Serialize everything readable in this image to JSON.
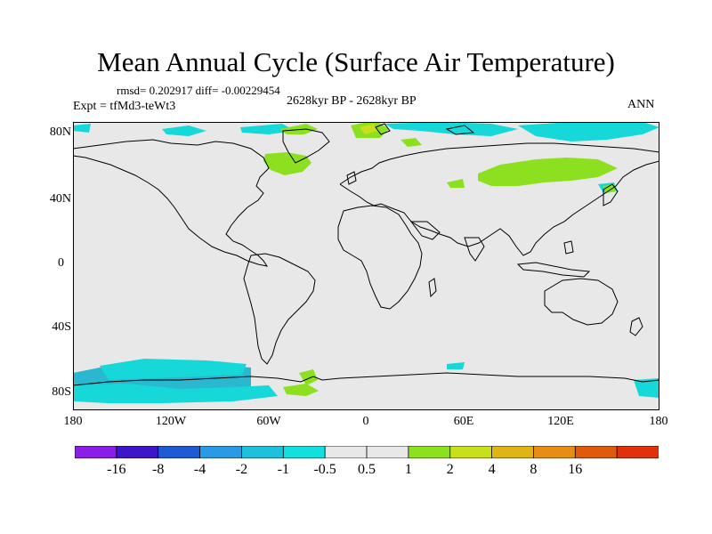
{
  "figure": {
    "title": "Mean Annual Cycle (Surface Air Temperature)",
    "stats": "rmsd= 0.202917 diff= -0.00229454",
    "period": "2628kyr BP - 2628kyr BP",
    "experiment": "Expt = tfMd3-teWt3",
    "season": "ANN"
  },
  "axes": {
    "lat_labels": [
      "80N",
      "40N",
      "0",
      "40S",
      "80S"
    ],
    "lon_labels": [
      "180",
      "120W",
      "60W",
      "0",
      "60E",
      "120E",
      "180"
    ]
  },
  "colorbar": {
    "colors": [
      "#8a1ee8",
      "#3c16c8",
      "#1e5ad6",
      "#2a9ae6",
      "#1ec0dc",
      "#12e0e0",
      "#e8e8e8",
      "#e8e8e8",
      "#8ce020",
      "#c8e01c",
      "#e0b414",
      "#e88c14",
      "#e05a0c",
      "#e0300c"
    ],
    "labels": [
      "-16",
      "-8",
      "-4",
      "-2",
      "-1",
      "-0.5",
      "0.5",
      "1",
      "2",
      "4",
      "8",
      "16"
    ]
  },
  "colors": {
    "background": "#e8e8e8",
    "coast": "#000000",
    "cyan": "#16d8d8",
    "teal": "#2ab8d0",
    "green": "#8ce020",
    "yellowgreen": "#c8e01c"
  }
}
